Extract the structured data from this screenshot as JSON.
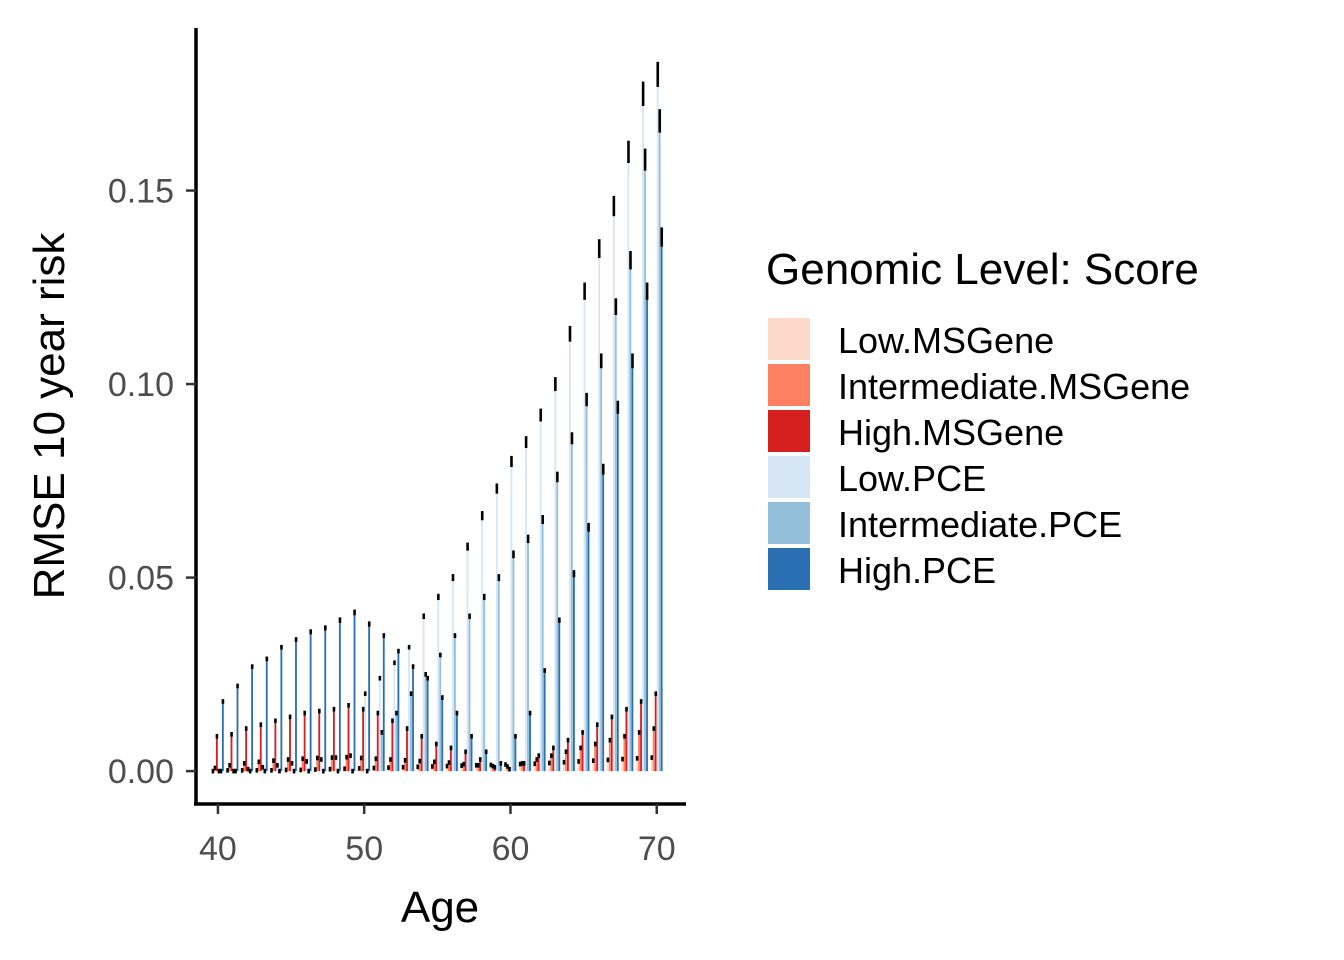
{
  "chart_data": {
    "type": "bar",
    "title": "",
    "xlabel": "Age",
    "ylabel": "RMSE 10 year risk",
    "xlim": [
      38.5,
      72
    ],
    "ylim": [
      -0.0085,
      0.192
    ],
    "x_ticks": [
      40,
      50,
      60,
      70
    ],
    "x_tick_labels": [
      "40",
      "50",
      "60",
      "70"
    ],
    "y_ticks": [
      0,
      0.05,
      0.1,
      0.15
    ],
    "y_tick_labels": [
      "0.00",
      "0.05",
      "0.10",
      "0.15"
    ],
    "grid": false,
    "legend_position": "right",
    "legend_title": "Genomic Level: Score",
    "x": [
      40,
      41,
      42,
      43,
      44,
      45,
      46,
      47,
      48,
      49,
      50,
      51,
      52,
      53,
      54,
      55,
      56,
      57,
      58,
      59,
      60,
      61,
      62,
      63,
      64,
      65,
      66,
      67,
      68,
      69,
      70
    ],
    "series": [
      {
        "name": "Low.MSGene",
        "color": "#FDD9CC",
        "values": [
          0.0,
          0.0002,
          0.0002,
          0.0002,
          0.0002,
          0.0003,
          0.0003,
          0.0004,
          0.0005,
          0.0006,
          0.0007,
          0.0008,
          0.0009,
          0.001,
          0.0011,
          0.0012,
          0.0013,
          0.0014,
          0.0015,
          0.0016,
          0.0017,
          0.0018,
          0.0019,
          0.0021,
          0.0023,
          0.0025,
          0.0027,
          0.0029,
          0.0031,
          0.0033,
          0.0035
        ]
      },
      {
        "name": "Intermediate.MSGene",
        "color": "#FC8061",
        "values": [
          0.0008,
          0.0015,
          0.002,
          0.0024,
          0.0027,
          0.003,
          0.0032,
          0.0034,
          0.0035,
          0.0036,
          0.0034,
          0.0032,
          0.003,
          0.0028,
          0.0026,
          0.0024,
          0.0022,
          0.0018,
          0.0015,
          0.0013,
          0.0012,
          0.002,
          0.003,
          0.004,
          0.005,
          0.006,
          0.007,
          0.008,
          0.009,
          0.01,
          0.011
        ]
      },
      {
        "name": "High.MSGene",
        "color": "#D5201F",
        "values": [
          0.009,
          0.0095,
          0.011,
          0.012,
          0.013,
          0.014,
          0.015,
          0.0155,
          0.016,
          0.017,
          0.016,
          0.015,
          0.013,
          0.011,
          0.009,
          0.007,
          0.006,
          0.005,
          0.003,
          0.001,
          0.0005,
          0.002,
          0.004,
          0.006,
          0.008,
          0.01,
          0.012,
          0.014,
          0.016,
          0.018,
          0.02
        ]
      },
      {
        "name": "Low.PCE",
        "color": "#D7E6F4",
        "values": [
          0.0,
          0.0,
          0.0005,
          0.001,
          0.0015,
          0.002,
          0.0025,
          0.003,
          0.0035,
          0.004,
          0.02,
          0.024,
          0.028,
          0.032,
          0.04,
          0.045,
          0.05,
          0.058,
          0.066,
          0.073,
          0.08,
          0.085,
          0.092,
          0.1,
          0.113,
          0.124,
          0.135,
          0.146,
          0.16,
          0.175,
          0.18
        ]
      },
      {
        "name": "Intermediate.PCE",
        "color": "#93BFDB",
        "values": [
          0.0,
          0.0,
          0.0,
          0.0,
          0.0,
          0.0,
          0.0,
          0.0,
          0.0,
          0.0,
          0.0,
          0.01,
          0.015,
          0.02,
          0.025,
          0.03,
          0.035,
          0.04,
          0.045,
          0.05,
          0.056,
          0.06,
          0.065,
          0.076,
          0.086,
          0.096,
          0.106,
          0.12,
          0.132,
          0.158,
          0.168
        ]
      },
      {
        "name": "High.PCE",
        "color": "#2B6FB3",
        "values": [
          0.018,
          0.022,
          0.027,
          0.029,
          0.032,
          0.034,
          0.036,
          0.037,
          0.039,
          0.041,
          0.038,
          0.035,
          0.031,
          0.027,
          0.024,
          0.019,
          0.015,
          0.009,
          0.005,
          0.002,
          0.009,
          0.015,
          0.026,
          0.039,
          0.051,
          0.063,
          0.078,
          0.094,
          0.106,
          0.124,
          0.138
        ]
      }
    ]
  }
}
